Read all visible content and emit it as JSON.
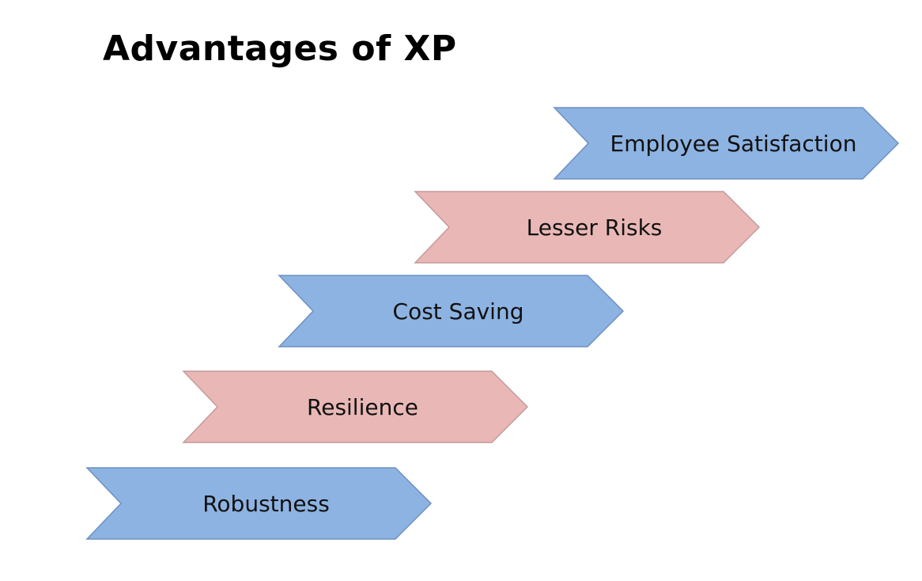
{
  "title": "Advantages of XP",
  "colors": {
    "blue_fill": "#8db3e2",
    "blue_stroke": "#6e90bf",
    "pink_fill": "#e9b8b6",
    "pink_stroke": "#c49a98",
    "text": "#111111"
  },
  "steps": [
    {
      "label": "Robustness",
      "color": "blue"
    },
    {
      "label": "Resilience",
      "color": "pink"
    },
    {
      "label": "Cost Saving",
      "color": "blue"
    },
    {
      "label": "Lesser Risks",
      "color": "pink"
    },
    {
      "label": "Employee Satisfaction",
      "color": "blue"
    }
  ]
}
